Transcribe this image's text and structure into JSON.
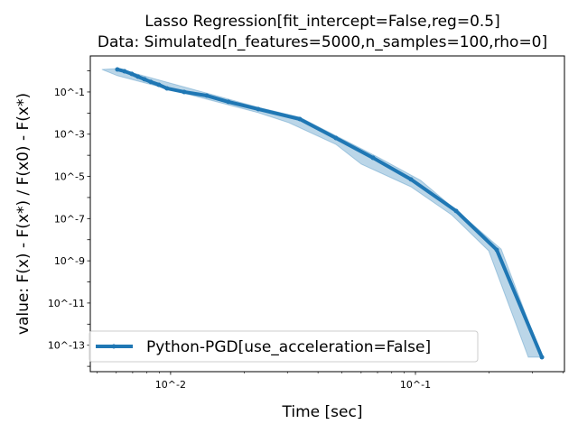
{
  "chart_data": {
    "type": "line",
    "title": "Lasso Regression[fit_intercept=False,reg=0.5]",
    "subtitle": "Data: Simulated[n_features=5000,n_samples=100,rho=0]",
    "xlabel": "Time [sec]",
    "ylabel": "value: F(x) - F(x*) / F(x0) - F(x*)",
    "xscale": "log",
    "yscale": "log",
    "xlim": [
      0.0047,
      0.406
    ],
    "ylim": [
      5.6e-15,
      5.1
    ],
    "xticks": [
      {
        "value": 0.01,
        "label": "10^-2"
      },
      {
        "value": 0.1,
        "label": "10^-1"
      }
    ],
    "yticks": [
      {
        "value": 0.1,
        "label": "10^-1"
      },
      {
        "value": 0.001,
        "label": "10^-3"
      },
      {
        "value": 1e-05,
        "label": "10^-5"
      },
      {
        "value": 1e-07,
        "label": "10^-7"
      },
      {
        "value": 1e-09,
        "label": "10^-9"
      },
      {
        "value": 1e-11,
        "label": "10^-11"
      },
      {
        "value": 1e-13,
        "label": "10^-13"
      }
    ],
    "legend": {
      "placement": "lower-left"
    },
    "series": [
      {
        "name": "Python-PGD[use_acceleration=False]",
        "color": "#1f77b4",
        "x": [
          0.00606,
          0.00648,
          0.00694,
          0.00736,
          0.00782,
          0.0083,
          0.00895,
          0.00966,
          0.01136,
          0.01405,
          0.01722,
          0.0228,
          0.0337,
          0.0473,
          0.0671,
          0.0959,
          0.1466,
          0.2148,
          0.3285
        ],
        "y": [
          1.17,
          0.96,
          0.72,
          0.53,
          0.4,
          0.3,
          0.22,
          0.148,
          0.1,
          0.067,
          0.034,
          0.0154,
          0.0052,
          0.00066,
          7.6e-05,
          7.2e-06,
          2.3e-07,
          3.3e-09,
          2.7e-14
        ],
        "band_upper": {
          "x": [
            0.00524,
            0.00606,
            0.0228,
            0.0337,
            0.0711,
            0.105,
            0.1466,
            0.224,
            0.3285
          ],
          "y": [
            1.17,
            1.29,
            0.0188,
            0.00635,
            7.6e-05,
            6.5e-06,
            2.5e-07,
            3.6e-09,
            2.7e-14
          ]
        },
        "band_lower": {
          "x": [
            0.00524,
            0.00606,
            0.0228,
            0.0304,
            0.0473,
            0.0601,
            0.0959,
            0.1406,
            0.199,
            0.289
          ],
          "y": [
            1.17,
            0.59,
            0.0104,
            0.0035,
            0.00033,
            3.8e-05,
            3.2e-06,
            1.5e-07,
            3e-09,
            2.7e-14
          ]
        }
      }
    ]
  }
}
